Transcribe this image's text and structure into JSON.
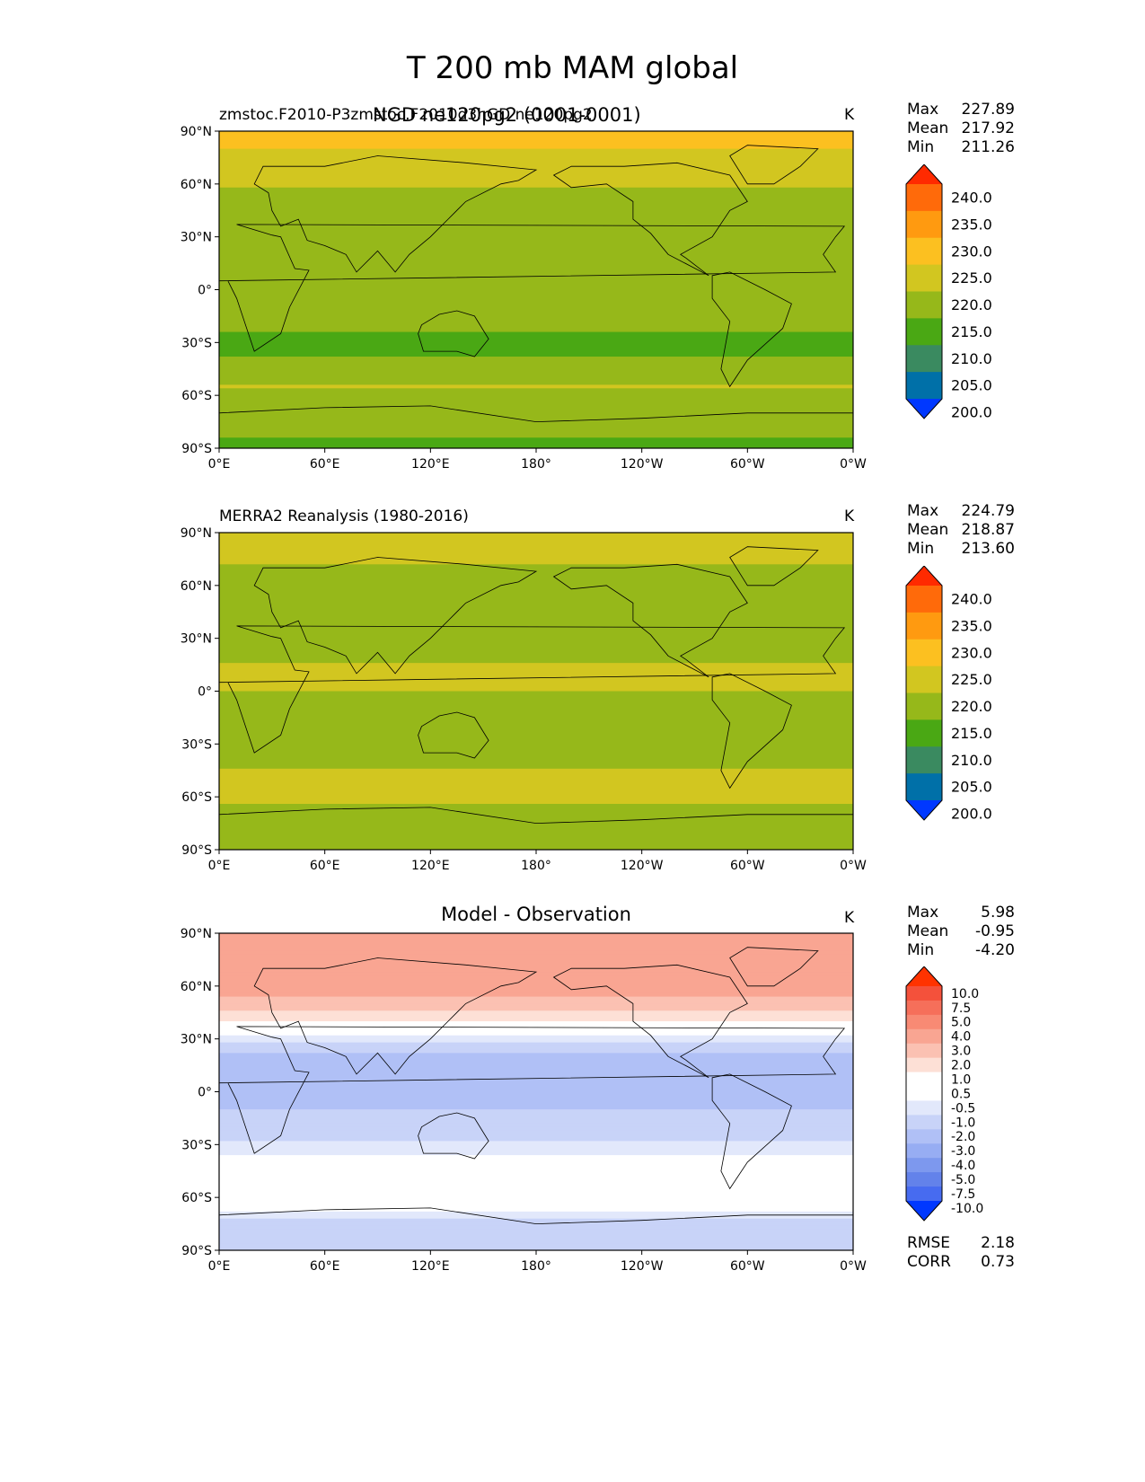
{
  "figure": {
    "title": "T 200 mb MAM global"
  },
  "panels": [
    {
      "left_title": "zmstoc.F2010-P3zmstoc.F2010d3hGD ne120pg2",
      "left_title_overlap": "NGD ne120pg2 (0001-0001)",
      "center_title": "",
      "units": "K",
      "stats": {
        "max_label": "Max",
        "max": "227.89",
        "mean_label": "Mean",
        "mean": "217.92",
        "min_label": "Min",
        "min": "211.26"
      }
    },
    {
      "left_title": "MERRA2 Reanalysis (1980-2016)",
      "center_title": "",
      "units": "K",
      "stats": {
        "max_label": "Max",
        "max": "224.79",
        "mean_label": "Mean",
        "mean": "218.87",
        "min_label": "Min",
        "min": "213.60"
      }
    },
    {
      "left_title": "",
      "center_title": "Model - Observation",
      "units": "K",
      "stats": {
        "max_label": "Max",
        "max": "5.98",
        "mean_label": "Mean",
        "mean": "-0.95",
        "min_label": "Min",
        "min": "-4.20"
      },
      "metrics": {
        "rmse_label": "RMSE",
        "rmse": "2.18",
        "corr_label": "CORR",
        "corr": "0.73"
      }
    }
  ],
  "chart_data": [
    {
      "type": "heatmap",
      "title": "zmstoc.F2010-P3 NGD ne120pg2",
      "units": "K",
      "x_ticks": [
        "0°E",
        "60°E",
        "120°E",
        "180°",
        "120°W",
        "60°W",
        "0°W"
      ],
      "y_ticks": [
        "90°N",
        "60°N",
        "30°N",
        "0°",
        "30°S",
        "60°S",
        "90°S"
      ],
      "xlim": [
        0,
        360
      ],
      "ylim": [
        -90,
        90
      ],
      "colorbar": {
        "ticks": [
          "240.0",
          "235.0",
          "230.0",
          "225.0",
          "220.0",
          "215.0",
          "210.0",
          "205.0",
          "200.0"
        ],
        "colors": [
          "#ff2a00",
          "#ff6a0a",
          "#ff9a10",
          "#fcc020",
          "#d2c620",
          "#96b81a",
          "#4aa814",
          "#3a8a60",
          "#0070a8",
          "#0038ff"
        ]
      },
      "zonal_profile": [
        {
          "lat": 85,
          "value": 226
        },
        {
          "lat": 70,
          "value": 223
        },
        {
          "lat": 55,
          "value": 219
        },
        {
          "lat": 35,
          "value": 215
        },
        {
          "lat": 0,
          "value": 217
        },
        {
          "lat": -35,
          "value": 214
        },
        {
          "lat": -55,
          "value": 220
        },
        {
          "lat": -75,
          "value": 217
        },
        {
          "lat": -88,
          "value": 214
        }
      ]
    },
    {
      "type": "heatmap",
      "title": "MERRA2 Reanalysis (1980-2016)",
      "units": "K",
      "x_ticks": [
        "0°E",
        "60°E",
        "120°E",
        "180°",
        "120°W",
        "60°W",
        "0°W"
      ],
      "y_ticks": [
        "90°N",
        "60°N",
        "30°N",
        "0°",
        "30°S",
        "60°S",
        "90°S"
      ],
      "xlim": [
        0,
        360
      ],
      "ylim": [
        -90,
        90
      ],
      "colorbar": {
        "ticks": [
          "240.0",
          "235.0",
          "230.0",
          "225.0",
          "220.0",
          "215.0",
          "210.0",
          "205.0",
          "200.0"
        ],
        "colors": [
          "#ff2a00",
          "#ff6a0a",
          "#ff9a10",
          "#fcc020",
          "#d2c620",
          "#96b81a",
          "#4aa814",
          "#3a8a60",
          "#0070a8",
          "#0038ff"
        ]
      },
      "zonal_profile": [
        {
          "lat": 85,
          "value": 221
        },
        {
          "lat": 60,
          "value": 219
        },
        {
          "lat": 35,
          "value": 217
        },
        {
          "lat": 10,
          "value": 221
        },
        {
          "lat": -20,
          "value": 218
        },
        {
          "lat": -55,
          "value": 221
        },
        {
          "lat": -80,
          "value": 218
        }
      ]
    },
    {
      "type": "heatmap",
      "title": "Model - Observation",
      "units": "K",
      "x_ticks": [
        "0°E",
        "60°E",
        "120°E",
        "180°",
        "120°W",
        "60°W",
        "0°W"
      ],
      "y_ticks": [
        "90°N",
        "60°N",
        "30°N",
        "0°",
        "30°S",
        "60°S",
        "90°S"
      ],
      "xlim": [
        0,
        360
      ],
      "ylim": [
        -90,
        90
      ],
      "colorbar": {
        "ticks": [
          "10.0",
          "7.5",
          "5.0",
          "4.0",
          "3.0",
          "2.0",
          "1.0",
          "0.5",
          "-0.5",
          "-1.0",
          "-2.0",
          "-3.0",
          "-4.0",
          "-5.0",
          "-7.5",
          "-10.0"
        ],
        "colors": [
          "#ff3300",
          "#f4513b",
          "#f66f5a",
          "#f88a74",
          "#f9a592",
          "#fbc1b2",
          "#fde0d6",
          "#ffffff",
          "#ffffff",
          "#e2e8fb",
          "#c8d3f8",
          "#b0c0f6",
          "#97adf3",
          "#7d98ee",
          "#6382ea",
          "#476bf0",
          "#0038ff"
        ]
      },
      "zonal_profile": [
        {
          "lat": 80,
          "value": 3
        },
        {
          "lat": 60,
          "value": 4
        },
        {
          "lat": 40,
          "value": 1
        },
        {
          "lat": 20,
          "value": -2.5
        },
        {
          "lat": -10,
          "value": -2
        },
        {
          "lat": -45,
          "value": 0
        },
        {
          "lat": -60,
          "value": 0.5
        },
        {
          "lat": -80,
          "value": -2
        }
      ]
    }
  ]
}
